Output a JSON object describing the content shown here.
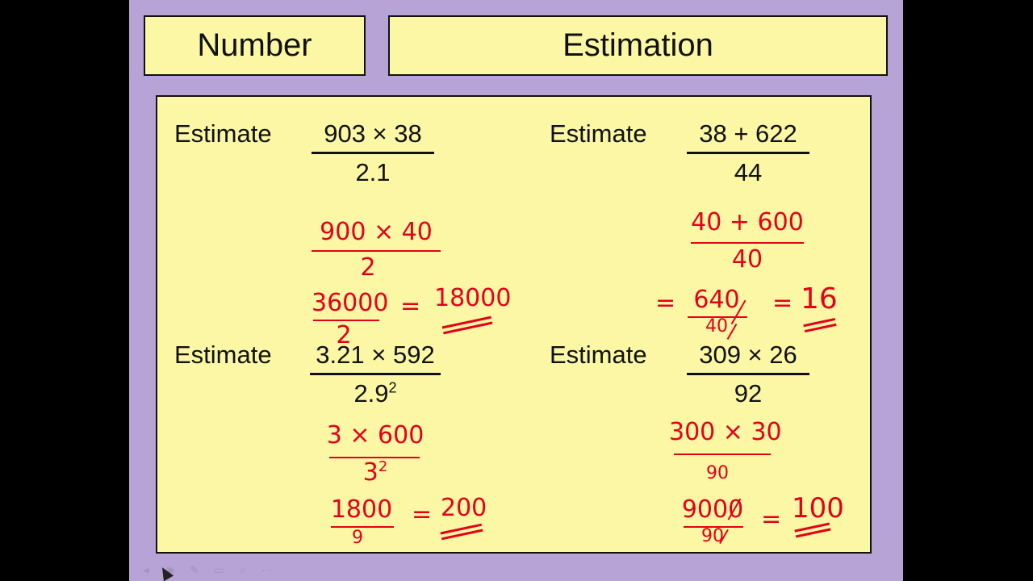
{
  "header": {
    "left_title": "Number",
    "right_title": "Estimation"
  },
  "questions": [
    {
      "label": "Estimate",
      "numerator": "903 × 38",
      "denominator": "2.1",
      "work": {
        "step1_num": "900 × 40",
        "step1_den": "2",
        "step2_num": "36000",
        "step2_den": "2",
        "equals": "=",
        "answer": "18000"
      }
    },
    {
      "label": "Estimate",
      "numerator": "38 + 622",
      "denominator": "44",
      "work": {
        "step1_num": "40 + 600",
        "step1_den": "40",
        "eq1": "=",
        "step2_num": "640",
        "step2_den": "40",
        "equals": "=",
        "answer": "16"
      }
    },
    {
      "label": "Estimate",
      "numerator": "3.21 × 592",
      "denominator_base": "2.9",
      "denominator_exp": "2",
      "work": {
        "step1_num": "3 × 600",
        "step1_den_base": "3",
        "step1_den_exp": "2",
        "step2_num": "1800",
        "step2_den": "9",
        "equals": "=",
        "answer": "200"
      }
    },
    {
      "label": "Estimate",
      "numerator": "309 × 26",
      "denominator": "92",
      "work": {
        "step1_num": "300 × 30",
        "step1_den": "90",
        "step2_num": "9000",
        "step2_den": "90",
        "equals": "=",
        "answer": "100"
      }
    }
  ],
  "colors": {
    "slide_bg": "#b8a3d6",
    "box_bg": "#fbf7a5",
    "ink_red": "#e5001a"
  },
  "toolbar_icons": [
    "prev-icon",
    "play-icon",
    "pen-icon",
    "slides-icon",
    "zoom-icon",
    "more-icon"
  ]
}
